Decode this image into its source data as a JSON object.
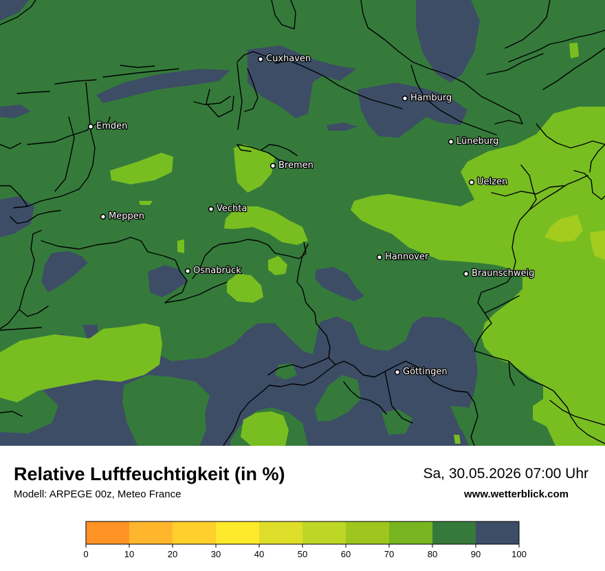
{
  "map": {
    "colors": {
      "c80_90": "#357a3b",
      "c90_100": "#3d4d66",
      "c70_80": "#78be21",
      "c60_70": "#a3cc1f",
      "border": "#000000"
    },
    "cities": [
      {
        "id": "cuxhaven",
        "name": "Cuxhaven"
      },
      {
        "id": "hamburg",
        "name": "Hamburg"
      },
      {
        "id": "emden",
        "name": "Emden"
      },
      {
        "id": "lueneburg",
        "name": "Lüneburg"
      },
      {
        "id": "bremen",
        "name": "Bremen"
      },
      {
        "id": "uelzen",
        "name": "Uelzen"
      },
      {
        "id": "vechta",
        "name": "Vechta"
      },
      {
        "id": "meppen",
        "name": "Meppen"
      },
      {
        "id": "hannover",
        "name": "Hannover"
      },
      {
        "id": "osnabrueck",
        "name": "Osnabrück"
      },
      {
        "id": "braunschweig",
        "name": "Braunschweig"
      },
      {
        "id": "goettingen",
        "name": "Göttingen"
      }
    ]
  },
  "header": {
    "title": "Relative Luftfeuchtigkeit (in %)",
    "model": "Modell: ARPEGE 00z, Meteo France",
    "datetime": "Sa, 30.05.2026 07:00 Uhr",
    "website": "www.wetterblick.com"
  },
  "legend": {
    "ticks": [
      "0",
      "10",
      "20",
      "30",
      "40",
      "50",
      "60",
      "70",
      "80",
      "90",
      "100"
    ],
    "colors": [
      "#ff9326",
      "#ffb62c",
      "#ffcf2c",
      "#ffe92b",
      "#dede2a",
      "#bdd726",
      "#9ec61f",
      "#78b520",
      "#357a3b",
      "#3d4d66"
    ]
  }
}
